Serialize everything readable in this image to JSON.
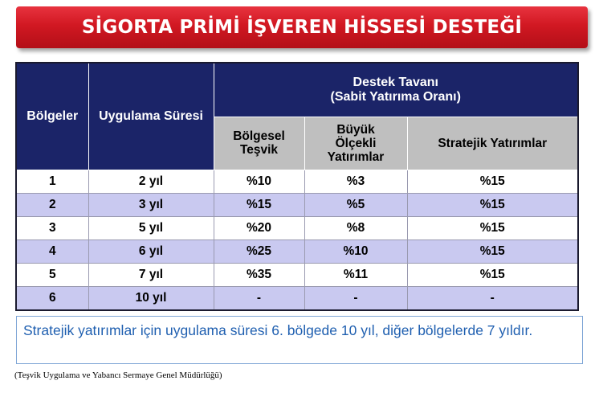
{
  "title": "SİGORTA PRİMİ İŞVEREN HİSSESİ DESTEĞİ",
  "table": {
    "col_region": "Bölgeler",
    "col_duration": "Uygulama Süresi",
    "group_header_line1": "Destek Tavanı",
    "group_header_line2": "(Sabit Yatırıma Oranı)",
    "sub_regional_line1": "Bölgesel",
    "sub_regional_line2": "Teşvik",
    "sub_large_line1": "Büyük",
    "sub_large_line2": "Ölçekli",
    "sub_large_line3": "Yatırımlar",
    "sub_strategic": "Stratejik Yatırımlar",
    "rows": [
      {
        "region": "1",
        "duration": "2 yıl",
        "regional": "%10",
        "large": "%3",
        "strategic": "%15"
      },
      {
        "region": "2",
        "duration": "3 yıl",
        "regional": "%15",
        "large": "%5",
        "strategic": "%15"
      },
      {
        "region": "3",
        "duration": "5 yıl",
        "regional": "%20",
        "large": "%8",
        "strategic": "%15"
      },
      {
        "region": "4",
        "duration": "6 yıl",
        "regional": "%25",
        "large": "%10",
        "strategic": "%15"
      },
      {
        "region": "5",
        "duration": "7 yıl",
        "regional": "%35",
        "large": "%11",
        "strategic": "%15"
      },
      {
        "region": "6",
        "duration": "10 yıl",
        "regional": "-",
        "large": "-",
        "strategic": "-"
      }
    ]
  },
  "note": "Stratejik yatırımlar için uygulama süresi 6. bölgede 10 yıl, diğer bölgelerde 7 yıldır.",
  "source": "(Teşvik Uygulama ve Yabancı Sermaye Genel Müdürlüğü)",
  "colors": {
    "banner_red": "#d11822",
    "header_navy": "#1b2468",
    "header_gray": "#bfbfbf",
    "row_stripe": "#c9c9f0",
    "note_text": "#1f5fb0"
  }
}
